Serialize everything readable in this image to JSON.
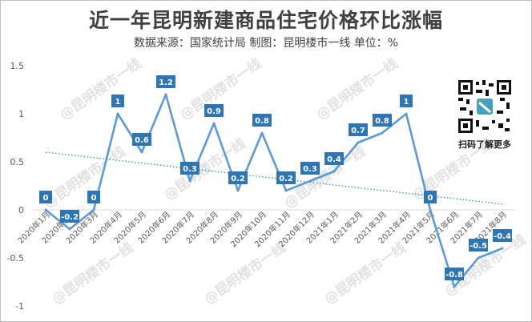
{
  "header": {
    "title": "近一年昆明新建商品住宅价格环比涨幅",
    "subtitle": "数据来源：国家统计局  制图：昆明楼市一线 单位：%"
  },
  "qr": {
    "caption": "扫码了解更多"
  },
  "watermark": {
    "text": "@昆明楼市一线"
  },
  "colors": {
    "line": "#5b9bd5",
    "label_bg": "#2e75b6",
    "trend": "#2e8bc0",
    "grid": "#d9d9d9"
  },
  "chart_data": {
    "type": "line",
    "title": "近一年昆明新建商品住宅价格环比涨幅",
    "categories": [
      "2020年1月",
      "2020年2月",
      "2020年3月",
      "2020年4月",
      "2020年5月",
      "2020年6月",
      "2020年7月",
      "2020年8月",
      "2020年9月",
      "2020年10月",
      "2020年11月",
      "2020年12月",
      "2021年1月",
      "2021年2月",
      "2021年3月",
      "2021年4月",
      "2021年5月",
      "2021年6月",
      "2021年7月",
      "2021年8月"
    ],
    "series": [
      {
        "values": [
          0,
          -0.2,
          0,
          1,
          0.6,
          1.2,
          0.3,
          0.9,
          0.2,
          0.8,
          0.2,
          0.3,
          0.4,
          0.7,
          0.8,
          1,
          0,
          -0.8,
          -0.5,
          -0.4
        ]
      }
    ],
    "data_labels": [
      "0",
      "-0.2",
      "0",
      "1",
      "0.6",
      "1.2",
      "0.3",
      "0.9",
      "0.2",
      "0.8",
      "0.2",
      "0.3",
      "0.4",
      "0.7",
      "0.8",
      "1",
      "0",
      "-0.8",
      "-0.5",
      "-0.4"
    ],
    "trendline": {
      "style": "dotted",
      "start": 0.6,
      "end": 0.06
    },
    "y_ticks": [
      "1.5",
      "1",
      "0.5",
      "0",
      "-0.5",
      "-1"
    ],
    "y_tick_values": [
      1.5,
      1,
      0.5,
      0,
      -0.5,
      -1
    ],
    "ylim": [
      -1,
      1.5
    ],
    "grid": false,
    "xlabel": "",
    "ylabel": ""
  }
}
